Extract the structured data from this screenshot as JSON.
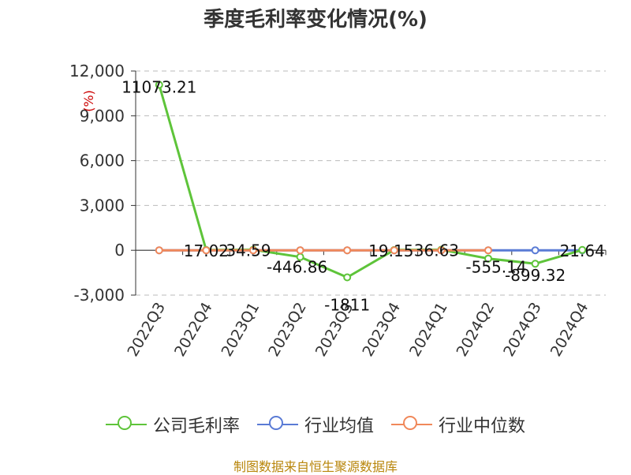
{
  "chart_data": {
    "type": "line",
    "title": "季度毛利率变化情况(%)",
    "ylabel": "(%)",
    "categories": [
      "2022Q3",
      "2022Q4",
      "2023Q1",
      "2023Q2",
      "2023Q3",
      "2023Q4",
      "2024Q1",
      "2024Q2",
      "2024Q3",
      "2024Q4"
    ],
    "ylim": [
      -3000,
      12000
    ],
    "yticks": [
      -3000,
      0,
      3000,
      6000,
      9000,
      12000
    ],
    "ytick_labels": [
      "-3,000",
      "0",
      "3,000",
      "6,000",
      "9,000",
      "12,000"
    ],
    "grid": true,
    "legend_position": "bottom",
    "series": [
      {
        "name": "公司毛利率",
        "color": "#5ec43a",
        "values": [
          11073.21,
          17.02,
          34.59,
          -446.86,
          -1811,
          19.15,
          36.63,
          -555.14,
          -899.32,
          21.64
        ],
        "labels": [
          "11073.21",
          "17.02",
          "34.59",
          "-446.86",
          "-1811",
          "19.15",
          "36.63",
          "-555.14",
          "-899.32",
          "21.64"
        ]
      },
      {
        "name": "行业均值",
        "color": "#5a7bd5",
        "values": [
          0,
          0,
          0,
          0,
          0,
          0,
          0,
          0,
          0,
          0
        ]
      },
      {
        "name": "行业中位数",
        "color": "#f0885a",
        "values": [
          0,
          0,
          0,
          0,
          0,
          0,
          0,
          0,
          null,
          null
        ]
      }
    ]
  },
  "footer": {
    "source": "制图数据来自恒生聚源数据库"
  }
}
